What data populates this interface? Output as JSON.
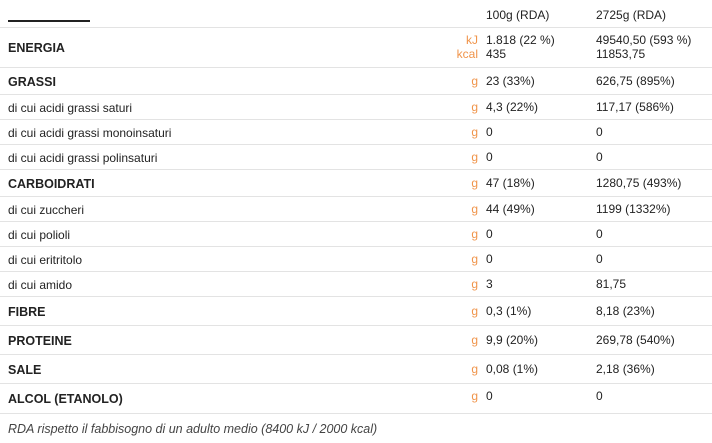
{
  "header": {
    "columns": [
      "100g (RDA)",
      "2725g (RDA)"
    ]
  },
  "table": {
    "rows": [
      {
        "label": "ENERGIA",
        "main": true,
        "units": [
          "kJ",
          "kcal"
        ],
        "per100": [
          "1.818 (22 %)",
          "435"
        ],
        "total": [
          "49540,50 (593 %)",
          "11853,75"
        ]
      },
      {
        "label": "GRASSI",
        "main": true,
        "units": [
          "g"
        ],
        "per100": [
          "23 (33%)"
        ],
        "total": [
          "626,75 (895%)"
        ]
      },
      {
        "label": "di cui acidi grassi saturi",
        "main": false,
        "units": [
          "g"
        ],
        "per100": [
          "4,3 (22%)"
        ],
        "total": [
          "117,17  (586%)"
        ]
      },
      {
        "label": "di cui acidi grassi monoinsaturi",
        "main": false,
        "units": [
          "g"
        ],
        "per100": [
          "0"
        ],
        "total": [
          "0"
        ]
      },
      {
        "label": "di cui acidi grassi polinsaturi",
        "main": false,
        "units": [
          "g"
        ],
        "per100": [
          "0"
        ],
        "total": [
          "0"
        ]
      },
      {
        "label": "CARBOIDRATI",
        "main": true,
        "units": [
          "g"
        ],
        "per100": [
          "47 (18%)"
        ],
        "total": [
          "1280,75 (493%)"
        ]
      },
      {
        "label": "di cui zuccheri",
        "main": false,
        "units": [
          "g"
        ],
        "per100": [
          "44 (49%)"
        ],
        "total": [
          "1199 (1332%)"
        ]
      },
      {
        "label": "di cui polioli",
        "main": false,
        "units": [
          "g"
        ],
        "per100": [
          "0"
        ],
        "total": [
          "0"
        ]
      },
      {
        "label": "di cui eritritolo",
        "main": false,
        "units": [
          "g"
        ],
        "per100": [
          "0"
        ],
        "total": [
          "0"
        ]
      },
      {
        "label": "di cui amido",
        "main": false,
        "units": [
          "g"
        ],
        "per100": [
          "3"
        ],
        "total": [
          "81,75"
        ]
      },
      {
        "label": "FIBRE",
        "main": true,
        "units": [
          "g"
        ],
        "per100": [
          "0,3 (1%)"
        ],
        "total": [
          "8,18 (23%)"
        ]
      },
      {
        "label": "PROTEINE",
        "main": true,
        "units": [
          "g"
        ],
        "per100": [
          "9,9 (20%)"
        ],
        "total": [
          "269,78 (540%)"
        ]
      },
      {
        "label": "SALE",
        "main": true,
        "units": [
          "g"
        ],
        "per100": [
          "0,08 (1%)"
        ],
        "total": [
          "2,18 (36%)"
        ]
      },
      {
        "label": "ALCOL (ETANOLO)",
        "main": true,
        "units": [
          "g"
        ],
        "per100": [
          "0"
        ],
        "total": [
          "0"
        ]
      }
    ]
  },
  "footnote": "RDA rispetto il fabbisogno di un adulto medio (8400 kJ / 2000 kcal)"
}
